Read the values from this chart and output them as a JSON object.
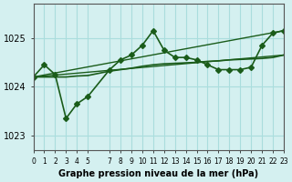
{
  "title": "Graphe pression niveau de la mer (hPa)",
  "bg_color": "#d4f0f0",
  "grid_color": "#aadddd",
  "line_color": "#1a5c1a",
  "xlim": [
    0,
    23
  ],
  "ylim": [
    1022.7,
    1025.7
  ],
  "yticks": [
    1023,
    1024,
    1025
  ],
  "xticks": [
    0,
    1,
    2,
    3,
    4,
    5,
    7,
    8,
    9,
    10,
    11,
    12,
    13,
    14,
    15,
    16,
    17,
    18,
    19,
    20,
    21,
    22,
    23
  ],
  "series": [
    {
      "x": [
        0,
        1,
        2,
        3,
        4,
        5,
        7,
        8,
        9,
        10,
        11,
        12,
        13,
        14,
        15,
        16,
        17,
        18,
        19,
        20,
        21,
        22,
        23
      ],
      "y": [
        1024.2,
        1024.45,
        1024.25,
        1023.35,
        1023.65,
        1023.8,
        1024.35,
        1024.55,
        1024.65,
        1024.85,
        1025.15,
        1024.75,
        1024.6,
        1024.6,
        1024.55,
        1024.45,
        1024.35,
        1024.35,
        1024.35,
        1024.4,
        1024.85,
        1025.1,
        1025.15
      ],
      "marker": "D",
      "markersize": 3,
      "linewidth": 1.2
    },
    {
      "x": [
        0,
        1,
        2,
        3,
        4,
        5,
        7,
        8,
        9,
        10,
        11,
        12,
        13,
        14,
        15,
        16,
        17,
        18,
        19,
        20,
        21,
        22,
        23
      ],
      "y": [
        1024.2,
        1024.2,
        1024.2,
        1024.2,
        1024.22,
        1024.23,
        1024.32,
        1024.35,
        1024.38,
        1024.42,
        1024.45,
        1024.47,
        1024.48,
        1024.49,
        1024.5,
        1024.52,
        1024.53,
        1024.55,
        1024.56,
        1024.57,
        1024.58,
        1024.6,
        1024.65
      ],
      "marker": null,
      "markersize": 0,
      "linewidth": 1.2
    },
    {
      "x": [
        0,
        23
      ],
      "y": [
        1024.2,
        1024.65
      ],
      "marker": null,
      "markersize": 0,
      "linewidth": 1.0
    },
    {
      "x": [
        0,
        23
      ],
      "y": [
        1024.2,
        1025.15
      ],
      "marker": null,
      "markersize": 0,
      "linewidth": 1.0
    }
  ]
}
